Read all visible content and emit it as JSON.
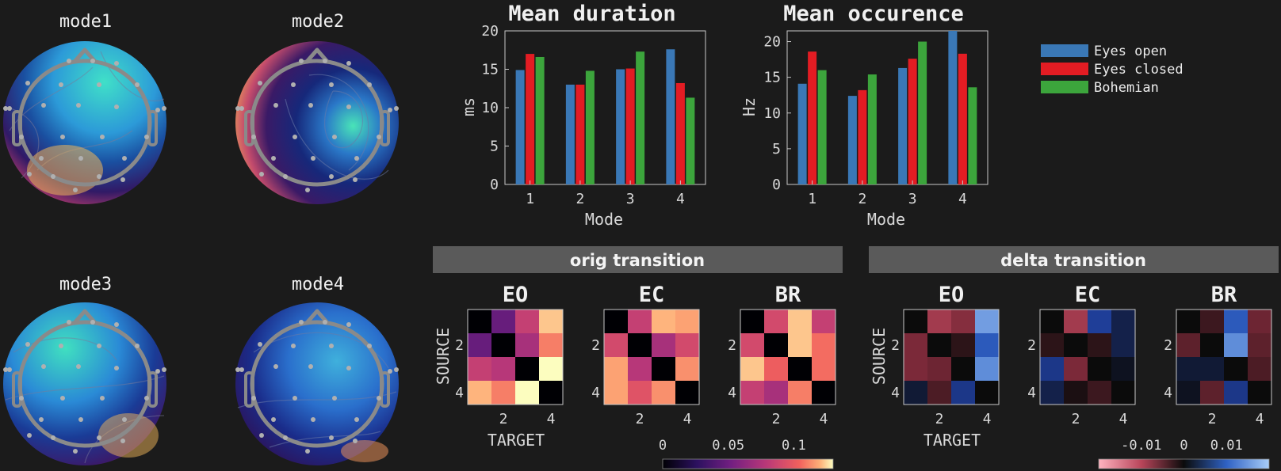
{
  "colors": {
    "background": "#1b1b1b",
    "axis": "#c8c8c8",
    "eyes_open": "#3a78b6",
    "eyes_closed": "#e31c23",
    "bohemian": "#3ca53c",
    "banner": "#5a5a5a",
    "electrode": "#a8a8a8",
    "head_outline": "#8a8a8a"
  },
  "topomaps": [
    {
      "label": "mode1",
      "style": "cool-top-warm-bottom"
    },
    {
      "label": "mode2",
      "style": "warm-ring-cool-center"
    },
    {
      "label": "mode3",
      "style": "cool-top-warm-bottom"
    },
    {
      "label": "mode4",
      "style": "cool-dominant"
    }
  ],
  "legend": {
    "entries": [
      "Eyes open",
      "Eyes closed",
      "Bohemian"
    ]
  },
  "chart_data": [
    {
      "type": "bar",
      "title": "Mean duration",
      "xlabel": "Mode",
      "ylabel": "ms",
      "categories": [
        "1",
        "2",
        "3",
        "4"
      ],
      "ylim": [
        0,
        20
      ],
      "yticks": [
        "0",
        "5",
        "10",
        "15",
        "20"
      ],
      "series": [
        {
          "name": "Eyes open",
          "values": [
            14.9,
            13.0,
            15.0,
            17.6
          ]
        },
        {
          "name": "Eyes closed",
          "values": [
            17.0,
            13.0,
            15.1,
            13.2
          ]
        },
        {
          "name": "Bohemian",
          "values": [
            16.6,
            14.8,
            17.3,
            11.3
          ]
        }
      ]
    },
    {
      "type": "bar",
      "title": "Mean occurence",
      "xlabel": "Mode",
      "ylabel": "Hz",
      "categories": [
        "1",
        "2",
        "3",
        "4"
      ],
      "ylim": [
        0,
        21.5
      ],
      "yticks": [
        "0",
        "5",
        "10",
        "15",
        "20"
      ],
      "series": [
        {
          "name": "Eyes open",
          "values": [
            14.1,
            12.4,
            16.3,
            21.5
          ]
        },
        {
          "name": "Eyes closed",
          "values": [
            18.6,
            13.2,
            17.6,
            18.3
          ]
        },
        {
          "name": "Bohemian",
          "values": [
            16.0,
            15.4,
            20.0,
            13.6
          ]
        }
      ]
    },
    {
      "type": "heatmap",
      "group": "orig transition",
      "xlabel": "TARGET",
      "ylabel": "SOURCE",
      "colormap": "magma",
      "clim": [
        0,
        0.13
      ],
      "ticks": [
        "2",
        "4"
      ],
      "colorbar_ticks": [
        {
          "value": 0,
          "label": "0"
        },
        {
          "value": 0.05,
          "label": "0.05"
        },
        {
          "value": 0.1,
          "label": "0.1"
        }
      ],
      "matrices": [
        {
          "name": "EO",
          "values": [
            [
              0,
              0.04,
              0.07,
              0.115
            ],
            [
              0.04,
              0,
              0.06,
              0.095
            ],
            [
              0.07,
              0.065,
              0,
              0.13
            ],
            [
              0.11,
              0.095,
              0.13,
              0
            ]
          ]
        },
        {
          "name": "EC",
          "values": [
            [
              0,
              0.07,
              0.11,
              0.105
            ],
            [
              0.075,
              0,
              0.06,
              0.075
            ],
            [
              0.105,
              0.065,
              0,
              0.1
            ],
            [
              0.105,
              0.08,
              0.1,
              0
            ]
          ]
        },
        {
          "name": "BR",
          "values": [
            [
              0,
              0.075,
              0.115,
              0.07
            ],
            [
              0.075,
              0,
              0.115,
              0.09
            ],
            [
              0.115,
              0.085,
              0,
              0.09
            ],
            [
              0.07,
              0.06,
              0.095,
              0
            ]
          ]
        }
      ]
    },
    {
      "type": "heatmap",
      "group": "delta transition",
      "xlabel": "TARGET",
      "ylabel": "SOURCE",
      "colormap": "diverging-red-blue",
      "clim": [
        -0.02,
        0.02
      ],
      "ticks": [
        "2",
        "4"
      ],
      "colorbar_ticks": [
        {
          "value": -0.01,
          "label": "-0.01"
        },
        {
          "value": 0,
          "label": "0"
        },
        {
          "value": 0.01,
          "label": "0.01"
        }
      ],
      "matrices": [
        {
          "name": "EO",
          "values": [
            [
              0,
              -0.011,
              -0.008,
              0.017
            ],
            [
              -0.007,
              0,
              -0.002,
              0.012
            ],
            [
              -0.007,
              -0.006,
              0,
              0.016
            ],
            [
              0.002,
              -0.004,
              0.006,
              0
            ]
          ]
        },
        {
          "name": "EC",
          "values": [
            [
              0,
              -0.011,
              0.007,
              0.003
            ],
            [
              -0.002,
              0,
              -0.002,
              0.003
            ],
            [
              0.006,
              -0.007,
              0,
              0.001
            ],
            [
              0.003,
              -0.001,
              -0.003,
              0
            ]
          ]
        },
        {
          "name": "BR",
          "values": [
            [
              0,
              -0.003,
              0.012,
              -0.006
            ],
            [
              -0.005,
              0,
              0.016,
              -0.005
            ],
            [
              0.002,
              0.002,
              0,
              -0.004
            ],
            [
              0.001,
              -0.005,
              0.006,
              0
            ]
          ]
        }
      ]
    }
  ]
}
